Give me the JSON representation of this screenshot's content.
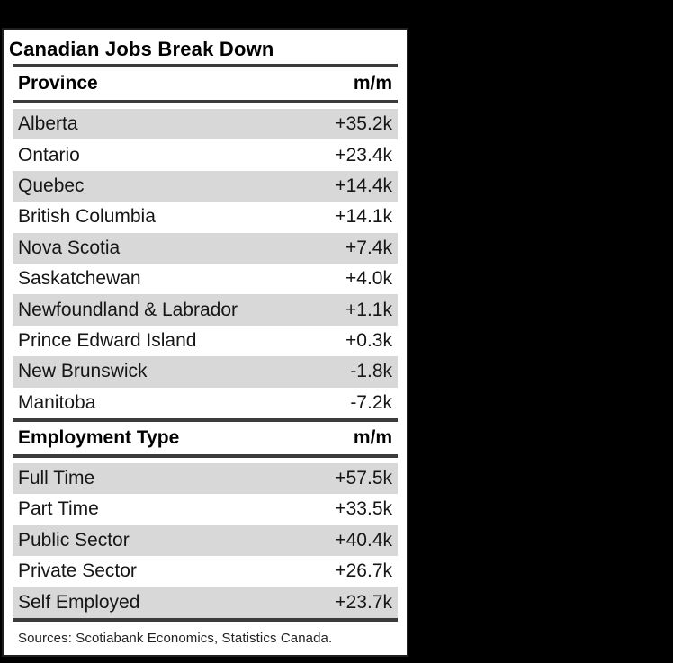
{
  "page": {
    "background_color": "#000000"
  },
  "table": {
    "title": "Canadian Jobs Break Down",
    "sources": "Sources: Scotiabank Economics, Statistics Canada.",
    "colors": {
      "card_background": "#ffffff",
      "stripe": "#d8d8d8",
      "rule": "#3b3b3b",
      "text": "#161616"
    },
    "sections": [
      {
        "header": "Province",
        "value_header": "m/m",
        "rows": [
          {
            "label": "Alberta",
            "value": "+35.2k"
          },
          {
            "label": "Ontario",
            "value": "+23.4k"
          },
          {
            "label": "Quebec",
            "value": "+14.4k"
          },
          {
            "label": "British Columbia",
            "value": "+14.1k"
          },
          {
            "label": "Nova Scotia",
            "value": "+7.4k"
          },
          {
            "label": "Saskatchewan",
            "value": "+4.0k"
          },
          {
            "label": "Newfoundland & Labrador",
            "value": "+1.1k"
          },
          {
            "label": "Prince Edward Island",
            "value": "+0.3k"
          },
          {
            "label": "New Brunswick",
            "value": "-1.8k"
          },
          {
            "label": "Manitoba",
            "value": "-7.2k"
          }
        ]
      },
      {
        "header": "Employment Type",
        "value_header": "m/m",
        "rows": [
          {
            "label": "Full Time",
            "value": "+57.5k"
          },
          {
            "label": "Part Time",
            "value": "+33.5k"
          },
          {
            "label": "Public Sector",
            "value": "+40.4k"
          },
          {
            "label": "Private Sector",
            "value": "+26.7k"
          },
          {
            "label": "Self Employed",
            "value": "+23.7k"
          }
        ]
      }
    ]
  },
  "chart_data": [
    {
      "type": "table",
      "title": "Canadian Jobs Break Down",
      "columns": [
        "Province",
        "m/m"
      ],
      "rows": [
        [
          "Alberta",
          "+35.2k"
        ],
        [
          "Ontario",
          "+23.4k"
        ],
        [
          "Quebec",
          "+14.4k"
        ],
        [
          "British Columbia",
          "+14.1k"
        ],
        [
          "Nova Scotia",
          "+7.4k"
        ],
        [
          "Saskatchewan",
          "+4.0k"
        ],
        [
          "Newfoundland & Labrador",
          "+1.1k"
        ],
        [
          "Prince Edward Island",
          "+0.3k"
        ],
        [
          "New Brunswick",
          "-1.8k"
        ],
        [
          "Manitoba",
          "-7.2k"
        ]
      ],
      "values_thousands": [
        35.2,
        23.4,
        14.4,
        14.1,
        7.4,
        4.0,
        1.1,
        0.3,
        -1.8,
        -7.2
      ]
    },
    {
      "type": "table",
      "title": "Canadian Jobs Break Down",
      "columns": [
        "Employment Type",
        "m/m"
      ],
      "rows": [
        [
          "Full Time",
          "+57.5k"
        ],
        [
          "Part Time",
          "+33.5k"
        ],
        [
          "Public Sector",
          "+40.4k"
        ],
        [
          "Private Sector",
          "+26.7k"
        ],
        [
          "Self Employed",
          "+23.7k"
        ]
      ],
      "values_thousands": [
        57.5,
        33.5,
        40.4,
        26.7,
        23.7
      ]
    }
  ]
}
